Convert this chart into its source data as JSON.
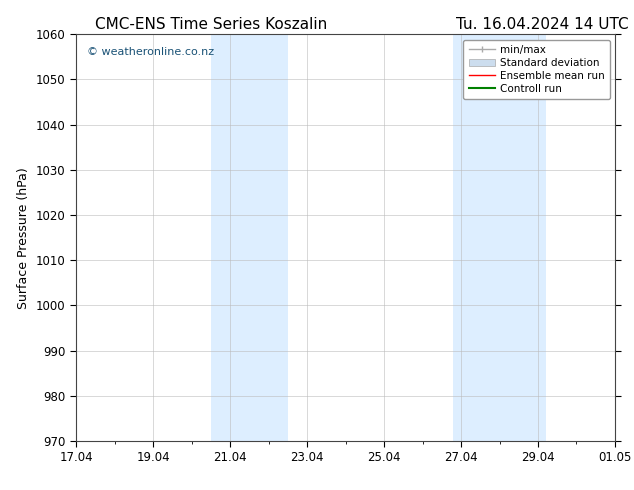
{
  "title_left": "CMC-ENS Time Series Koszalin",
  "title_right": "Tu. 16.04.2024 14 UTC",
  "ylabel": "Surface Pressure (hPa)",
  "ylim": [
    970,
    1060
  ],
  "yticks": [
    970,
    980,
    990,
    1000,
    1010,
    1020,
    1030,
    1040,
    1050,
    1060
  ],
  "x_start_day": 0,
  "x_end_day": 14,
  "xtick_labels": [
    "17.04",
    "19.04",
    "21.04",
    "23.04",
    "25.04",
    "27.04",
    "29.04",
    "01.05"
  ],
  "xtick_positions": [
    0,
    2,
    4,
    6,
    8,
    10,
    12,
    14
  ],
  "shaded_bands": [
    {
      "x_start": 3.5,
      "x_end": 5.5
    },
    {
      "x_start": 9.8,
      "x_end": 12.2
    }
  ],
  "shaded_color": "#ddeeff",
  "watermark_text": "© weatheronline.co.nz",
  "watermark_color": "#1a5276",
  "background_color": "#ffffff",
  "plot_bg_color": "#ffffff",
  "legend_entries": [
    {
      "label": "min/max",
      "color": "#aaaaaa",
      "lw": 1.0,
      "type": "line_with_caps"
    },
    {
      "label": "Standard deviation",
      "color": "#ccddee",
      "lw": 8,
      "type": "patch"
    },
    {
      "label": "Ensemble mean run",
      "color": "#ff0000",
      "lw": 1.0,
      "type": "line"
    },
    {
      "label": "Controll run",
      "color": "#008000",
      "lw": 1.5,
      "type": "line"
    }
  ],
  "grid_color": "#bbbbbb",
  "grid_lw": 0.4,
  "title_fontsize": 11,
  "label_fontsize": 9,
  "tick_fontsize": 8.5,
  "legend_fontsize": 7.5,
  "watermark_fontsize": 8
}
